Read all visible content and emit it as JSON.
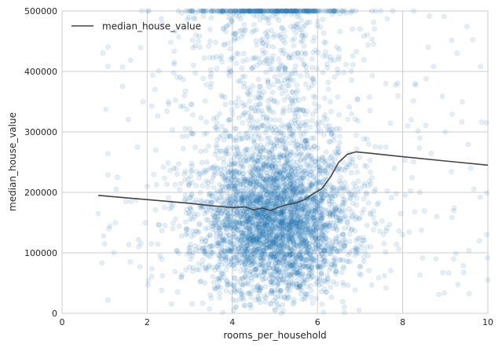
{
  "chart_data": {
    "type": "scatter",
    "title": "",
    "xlabel": "rooms_per_household",
    "ylabel": "median_house_value",
    "xlim": [
      0,
      10
    ],
    "ylim": [
      0,
      500000
    ],
    "x_ticks": [
      0,
      2,
      4,
      6,
      8,
      10
    ],
    "y_ticks": [
      0,
      100000,
      200000,
      300000,
      400000,
      500000
    ],
    "x_tick_labels": [
      "0",
      "2",
      "4",
      "6",
      "8",
      "10"
    ],
    "y_tick_labels": [
      "0",
      "100000",
      "200000",
      "300000",
      "400000",
      "500000"
    ],
    "grid": true,
    "legend": {
      "placement": "top-left",
      "entries": [
        {
          "label": "median_house_value",
          "color": "#444444",
          "marker": "line"
        }
      ]
    },
    "scatter_series": {
      "color": "#1f77b4",
      "alpha": 0.12,
      "note_points_approx": "dense cloud centered near rooms 5, value 150000; capped band at 500000",
      "points": [
        [
          0.85,
          165000
        ],
        [
          1.0,
          115000
        ],
        [
          1.1,
          140000
        ],
        [
          1.3,
          225000
        ],
        [
          1.5,
          185000
        ],
        [
          1.6,
          85000
        ],
        [
          1.8,
          110000
        ],
        [
          1.9,
          350000
        ],
        [
          2.0,
          210000
        ],
        [
          2.1,
          115000
        ],
        [
          2.2,
          270000
        ],
        [
          2.3,
          95000
        ],
        [
          2.4,
          175000
        ],
        [
          2.5,
          350000
        ],
        [
          2.6,
          140000
        ],
        [
          2.7,
          230000
        ],
        [
          2.8,
          60000
        ],
        [
          2.9,
          195000
        ],
        [
          3.0,
          305000
        ],
        [
          3.1,
          130000
        ],
        [
          3.2,
          450000
        ],
        [
          3.3,
          80000
        ],
        [
          3.4,
          250000
        ],
        [
          3.5,
          170000
        ],
        [
          3.6,
          40000
        ],
        [
          3.7,
          330000
        ],
        [
          3.8,
          120000
        ],
        [
          3.9,
          210000
        ],
        [
          4.0,
          90000
        ],
        [
          4.1,
          275000
        ],
        [
          4.2,
          150000
        ],
        [
          4.3,
          60000
        ],
        [
          4.4,
          190000
        ],
        [
          4.5,
          120000
        ],
        [
          4.6,
          240000
        ],
        [
          4.7,
          80000
        ],
        [
          4.8,
          160000
        ],
        [
          4.9,
          110000
        ],
        [
          5.0,
          200000
        ],
        [
          5.1,
          135000
        ],
        [
          5.2,
          70000
        ],
        [
          5.3,
          180000
        ],
        [
          5.4,
          125000
        ],
        [
          5.5,
          230000
        ],
        [
          5.6,
          95000
        ],
        [
          5.7,
          170000
        ],
        [
          5.8,
          260000
        ],
        [
          5.9,
          140000
        ],
        [
          6.0,
          300000
        ],
        [
          6.1,
          110000
        ],
        [
          6.2,
          220000
        ],
        [
          6.3,
          350000
        ],
        [
          6.4,
          180000
        ],
        [
          6.5,
          420000
        ],
        [
          6.6,
          250000
        ],
        [
          6.7,
          150000
        ],
        [
          6.8,
          330000
        ],
        [
          6.9,
          210000
        ],
        [
          7.0,
          470000
        ],
        [
          7.2,
          280000
        ],
        [
          7.4,
          180000
        ],
        [
          7.6,
          380000
        ],
        [
          7.8,
          240000
        ],
        [
          8.0,
          130000
        ],
        [
          8.2,
          320000
        ],
        [
          8.4,
          200000
        ],
        [
          8.6,
          440000
        ],
        [
          8.8,
          160000
        ],
        [
          9.0,
          300000
        ],
        [
          9.2,
          90000
        ],
        [
          9.4,
          350000
        ],
        [
          9.6,
          240000
        ],
        [
          9.8,
          120000
        ],
        [
          10.0,
          55000
        ]
      ]
    },
    "line_series": {
      "name": "median_house_value",
      "color": "#444444",
      "x": [
        0.85,
        1.5,
        2.0,
        2.5,
        3.0,
        3.5,
        4.0,
        4.3,
        4.5,
        4.7,
        4.9,
        5.1,
        5.3,
        5.5,
        5.7,
        5.9,
        6.1,
        6.3,
        6.5,
        6.7,
        6.9,
        7.2,
        8.0,
        9.0,
        10.0
      ],
      "y": [
        195000,
        191000,
        188000,
        185000,
        182000,
        178000,
        175000,
        176000,
        171000,
        174000,
        170000,
        176000,
        180000,
        183000,
        188000,
        198000,
        206000,
        225000,
        250000,
        263000,
        267000,
        265000,
        259000,
        252000,
        245000
      ]
    }
  }
}
